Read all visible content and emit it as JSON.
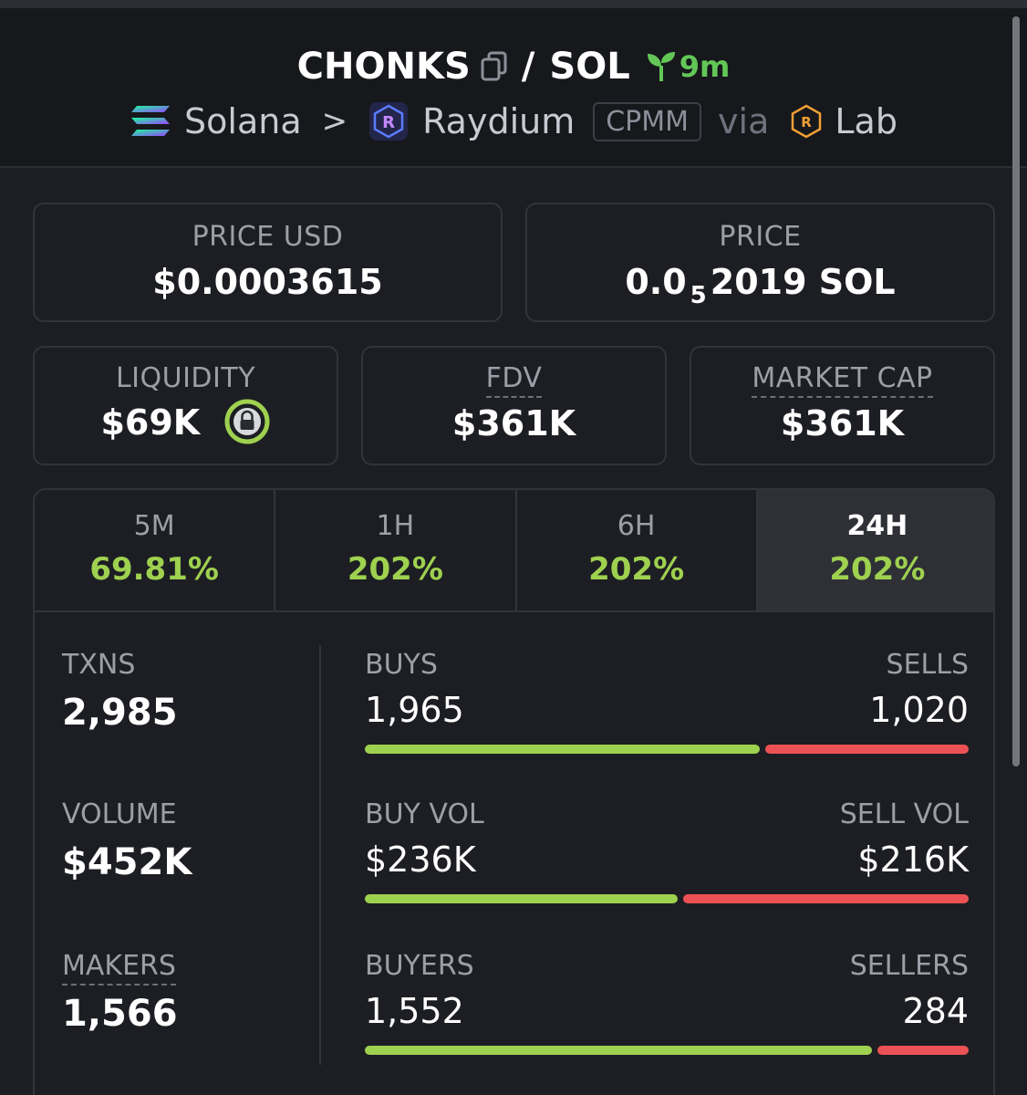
{
  "header": {
    "base_symbol": "CHONKS",
    "slash": "/",
    "quote_symbol": "SOL",
    "age": "9m",
    "chain": "Solana",
    "chevron": ">",
    "dex": "Raydium",
    "pool_type": "CPMM",
    "via": "via",
    "launchpad": "Lab"
  },
  "price_usd": {
    "label": "PRICE USD",
    "value": "$0.0003615"
  },
  "price_native": {
    "label": "PRICE",
    "prefix": "0.0",
    "subscript": "5",
    "suffix": "2019 SOL"
  },
  "liquidity": {
    "label": "LIQUIDITY",
    "value": "$69K"
  },
  "fdv": {
    "label": "FDV",
    "value": "$361K"
  },
  "market_cap": {
    "label": "MARKET CAP",
    "value": "$361K"
  },
  "tabs": [
    {
      "label": "5M",
      "value": "69.81%"
    },
    {
      "label": "1H",
      "value": "202%"
    },
    {
      "label": "6H",
      "value": "202%"
    },
    {
      "label": "24H",
      "value": "202%"
    }
  ],
  "stats": {
    "txns": {
      "label": "TXNS",
      "value": "2,985"
    },
    "volume": {
      "label": "VOLUME",
      "value": "$452K"
    },
    "makers": {
      "label": "MAKERS",
      "value": "1,566"
    },
    "buys_sells": {
      "left_label": "BUYS",
      "right_label": "SELLS",
      "left_value": "1,965",
      "right_value": "1,020",
      "left_share": 0.658
    },
    "vol_split": {
      "left_label": "BUY VOL",
      "right_label": "SELL VOL",
      "left_value": "$236K",
      "right_value": "$216K",
      "left_share": 0.522
    },
    "traders": {
      "left_label": "BUYERS",
      "right_label": "SELLERS",
      "left_value": "1,552",
      "right_value": "284",
      "left_share": 0.845
    }
  },
  "colors": {
    "positive": "#9ed14f",
    "negative": "#ec5255",
    "age_green": "#63c757"
  }
}
